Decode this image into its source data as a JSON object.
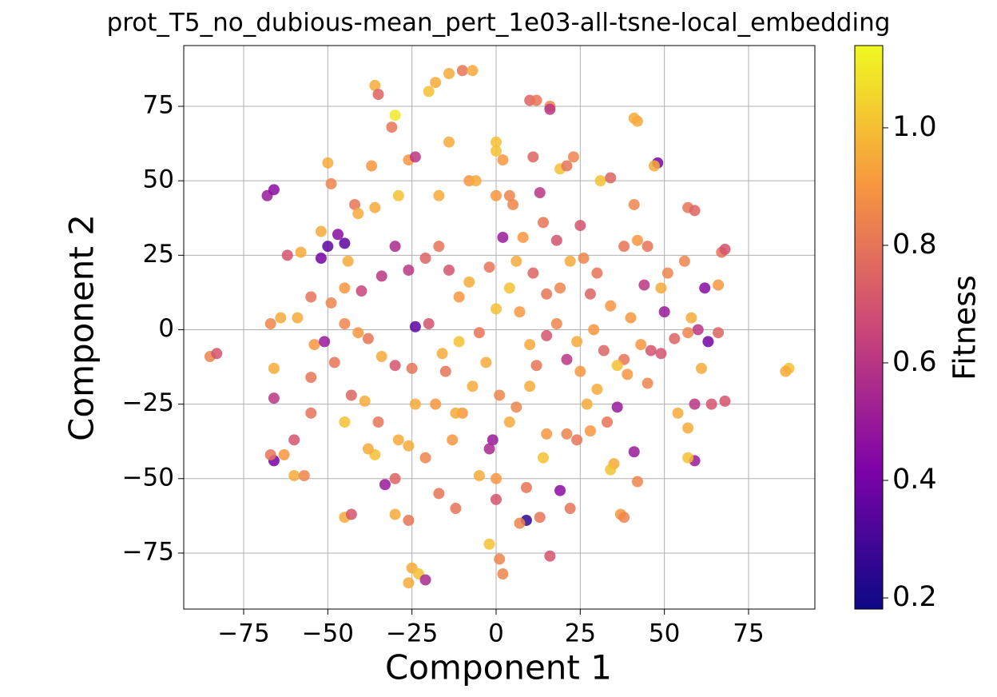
{
  "chart_data": {
    "type": "scatter",
    "title": "prot_T5_no_dubious-mean_pert_1e03-all-tsne-local_embedding",
    "x_label": "Component 1",
    "y_label": "Component 2",
    "xlim": [
      -92.8,
      94.7
    ],
    "ylim": [
      -93.8,
      95.4
    ],
    "xticks": [
      {
        "value": -75,
        "label": "−75"
      },
      {
        "value": -50,
        "label": "−50"
      },
      {
        "value": -25,
        "label": "−25"
      },
      0,
      25,
      50,
      75
    ],
    "yticks": [
      {
        "value": -75,
        "label": "−75"
      },
      {
        "value": -50,
        "label": "−50"
      },
      {
        "value": -25,
        "label": "−25"
      },
      0,
      25,
      50,
      75
    ],
    "grid": true,
    "colormap": "plasma",
    "colorbar": {
      "label": "Fitness",
      "lim": [
        0.181,
        1.14
      ],
      "ticks": [
        0.2,
        0.4,
        0.6,
        0.8,
        {
          "value": 1,
          "label": "1.0"
        }
      ]
    },
    "x": [
      -85,
      -83,
      -67,
      -66,
      -66,
      -67,
      -66,
      -63,
      -60,
      -60,
      -57,
      -68,
      -66,
      -62,
      -58,
      -52,
      -50,
      -49,
      -47,
      -45,
      -44,
      -42,
      -37,
      -36,
      -35,
      -31,
      -30,
      -36,
      -29,
      -26,
      -24,
      -20,
      -18,
      -14,
      -10,
      -7,
      -17,
      -14,
      -8,
      -6,
      0,
      0,
      2,
      0,
      4,
      10,
      12,
      16,
      16,
      11,
      13,
      19,
      21,
      23,
      31,
      34,
      41,
      42,
      48,
      47,
      41,
      42,
      38,
      45,
      57,
      59,
      66,
      67,
      68,
      62,
      56,
      58,
      60,
      57,
      63,
      66,
      68,
      64,
      59,
      54,
      57,
      59,
      57,
      61,
      87,
      86,
      49,
      46,
      43,
      38,
      36,
      36,
      33,
      35,
      34,
      42,
      41,
      37,
      38,
      30,
      27,
      25,
      21,
      19,
      22,
      16,
      13,
      9,
      9,
      7,
      14,
      15,
      4,
      1,
      -1,
      -2,
      0,
      -5,
      0,
      -2,
      1,
      2,
      -12,
      -17,
      -13,
      -10,
      -18,
      -24,
      -25,
      -23,
      -21,
      -26,
      -26,
      -30,
      -33,
      -30,
      -29,
      -35,
      -39,
      -43,
      -45,
      -43,
      -36,
      -38,
      -45,
      -55,
      -55,
      -54,
      -51,
      -48,
      -45,
      -41,
      -38,
      -34,
      -30,
      -25,
      -24,
      -20,
      -16,
      -11,
      -5,
      -3,
      0,
      4,
      7,
      10,
      12,
      15,
      18,
      21,
      24,
      29,
      32,
      34,
      30,
      26,
      22,
      19,
      15,
      11,
      6,
      2,
      -2,
      -8,
      -11,
      -14,
      -17,
      -21,
      -26,
      -30,
      -34,
      -40,
      -45,
      -49,
      -55,
      -59,
      -64,
      -52,
      -50,
      5,
      8,
      14,
      18,
      25,
      28,
      40,
      44,
      49,
      51,
      50,
      53,
      45,
      39,
      28,
      24,
      10,
      6,
      -7,
      -15,
      -21,
      -12,
      -41,
      -26
    ],
    "values": [
      -9,
      -8,
      2,
      -13,
      -44,
      -42,
      -23,
      -42,
      -37,
      -49,
      -49,
      45,
      47,
      25,
      26,
      33,
      56,
      49,
      32,
      29,
      23,
      42,
      55,
      82,
      79,
      68,
      72,
      41,
      45,
      57,
      58,
      80,
      83,
      86,
      87,
      87,
      45,
      63,
      50,
      50,
      60,
      63,
      57,
      45,
      45,
      77,
      77,
      75,
      74,
      58,
      46,
      54,
      55,
      58,
      50,
      51,
      71,
      70,
      56,
      55,
      42,
      30,
      28,
      28,
      41,
      40,
      15,
      26,
      27,
      14,
      23,
      4,
      0,
      -1,
      -4,
      -1,
      -24,
      -25,
      -25,
      -28,
      -33,
      -44,
      -43,
      -13,
      -13,
      -14,
      -8,
      -7,
      -5,
      -10,
      -12,
      -26,
      -31,
      -45,
      -47,
      -51,
      -41,
      -62,
      -63,
      -20,
      -25,
      -14,
      -35,
      -54,
      -60,
      -76,
      -63,
      -64,
      -53,
      -65,
      -43,
      -35,
      -31,
      -22,
      -37,
      -40,
      -50,
      -49,
      -57,
      -72,
      -77,
      -82,
      -60,
      -55,
      -37,
      -28,
      -25,
      -25,
      -80,
      -82,
      -84,
      -85,
      -64,
      -62,
      -52,
      -50,
      -37,
      -31,
      -24,
      -22,
      -63,
      -62,
      -42,
      -40,
      -31,
      -16,
      -28,
      -5,
      -4,
      -11,
      2,
      -1,
      -3,
      -9,
      -12,
      -13,
      1,
      2,
      -8,
      -4,
      -1,
      -11,
      7,
      14,
      6,
      -5,
      -12,
      -2,
      2,
      -10,
      -4,
      0,
      -7,
      8,
      19,
      24,
      23,
      14,
      12,
      19,
      23,
      31,
      21,
      16,
      11,
      20,
      28,
      24,
      20,
      28,
      18,
      13,
      14,
      9,
      11,
      4,
      4,
      24,
      28,
      42,
      31,
      36,
      30,
      35,
      12,
      4,
      15,
      14,
      19,
      6,
      -3,
      -18,
      -15,
      -34,
      -37,
      -19,
      -26,
      -19,
      -14,
      -43,
      -28,
      39,
      -39
    ],
    "color_values": [
      0.85,
      0.7,
      0.85,
      0.95,
      0.4,
      0.8,
      0.6,
      0.9,
      0.7,
      0.95,
      0.85,
      0.5,
      0.45,
      0.7,
      0.95,
      0.95,
      0.95,
      0.85,
      0.45,
      0.35,
      0.95,
      0.8,
      0.9,
      0.95,
      0.75,
      0.8,
      1.1,
      0.95,
      1.0,
      0.9,
      0.6,
      1.0,
      0.95,
      0.95,
      0.8,
      0.95,
      0.95,
      0.95,
      0.9,
      0.95,
      1.0,
      1.0,
      0.9,
      0.9,
      0.85,
      0.75,
      0.8,
      0.85,
      0.6,
      0.75,
      0.6,
      1.0,
      0.8,
      0.85,
      1.0,
      0.75,
      0.95,
      0.95,
      0.4,
      0.95,
      0.85,
      0.9,
      0.8,
      0.8,
      0.8,
      0.75,
      0.9,
      0.8,
      0.7,
      0.45,
      0.85,
      0.95,
      0.6,
      0.85,
      0.4,
      0.75,
      0.7,
      0.7,
      0.6,
      0.95,
      0.95,
      0.5,
      1.0,
      0.95,
      1.0,
      0.95,
      0.7,
      0.7,
      0.9,
      0.8,
      1.0,
      0.5,
      0.8,
      0.95,
      1.0,
      0.85,
      0.5,
      0.9,
      0.85,
      0.95,
      0.95,
      0.9,
      0.85,
      0.45,
      0.8,
      0.7,
      0.8,
      0.25,
      0.8,
      0.85,
      1.0,
      0.9,
      0.95,
      0.85,
      0.5,
      0.55,
      0.9,
      0.95,
      0.7,
      1.0,
      0.85,
      0.85,
      0.8,
      0.8,
      0.9,
      0.9,
      0.9,
      0.95,
      0.95,
      1.0,
      0.55,
      0.95,
      0.8,
      0.95,
      0.5,
      0.75,
      0.95,
      0.8,
      0.95,
      0.75,
      0.95,
      0.7,
      1.0,
      0.95,
      1.0,
      0.8,
      0.8,
      0.9,
      0.5,
      0.8,
      0.85,
      0.9,
      0.8,
      0.95,
      0.7,
      0.8,
      0.35,
      0.7,
      0.95,
      1.0,
      0.8,
      0.95,
      1.0,
      1.0,
      0.9,
      0.95,
      0.8,
      0.7,
      0.85,
      0.6,
      0.95,
      0.9,
      0.75,
      0.9,
      0.8,
      0.85,
      0.95,
      0.85,
      0.8,
      0.75,
      0.95,
      0.5,
      0.8,
      0.95,
      0.9,
      0.7,
      0.8,
      0.75,
      0.6,
      0.55,
      0.6,
      0.65,
      0.9,
      0.85,
      0.8,
      0.95,
      0.95,
      0.4,
      0.35,
      0.85,
      0.9,
      0.8,
      0.7,
      0.7,
      0.75,
      0.9,
      0.6,
      0.95,
      0.85,
      0.5,
      0.75,
      0.85,
      0.9,
      0.9,
      0.8,
      0.95,
      0.85,
      0.95,
      0.8,
      0.85,
      0.95,
      0.95,
      0.95
    ]
  }
}
